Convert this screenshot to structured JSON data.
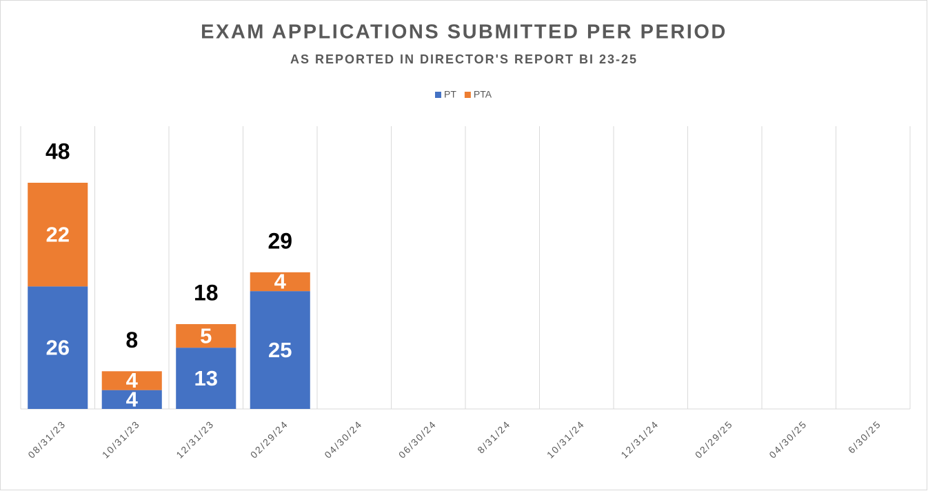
{
  "chart_data": {
    "type": "stacked_bar",
    "title": "EXAM APPLICATIONS SUBMITTED PER PERIOD",
    "subtitle": "AS REPORTED IN DIRECTOR'S REPORT BI 23-25",
    "categories": [
      "08/31/23",
      "10/31/23",
      "12/31/23",
      "02/29/24",
      "04/30/24",
      "06/30/24",
      "8/31/24",
      "10/31/24",
      "12/31/24",
      "02/29/25",
      "04/30/25",
      "6/30/25"
    ],
    "series": [
      {
        "name": "PT",
        "color": "#4472c4",
        "values": [
          26,
          4,
          13,
          25,
          null,
          null,
          null,
          null,
          null,
          null,
          null,
          null
        ]
      },
      {
        "name": "PTA",
        "color": "#ed7d31",
        "values": [
          22,
          4,
          5,
          4,
          null,
          null,
          null,
          null,
          null,
          null,
          null,
          null
        ]
      }
    ],
    "totals": [
      48,
      8,
      18,
      29,
      null,
      null,
      null,
      null,
      null,
      null,
      null,
      null
    ],
    "ylim": [
      0,
      60
    ],
    "legend": "top"
  }
}
